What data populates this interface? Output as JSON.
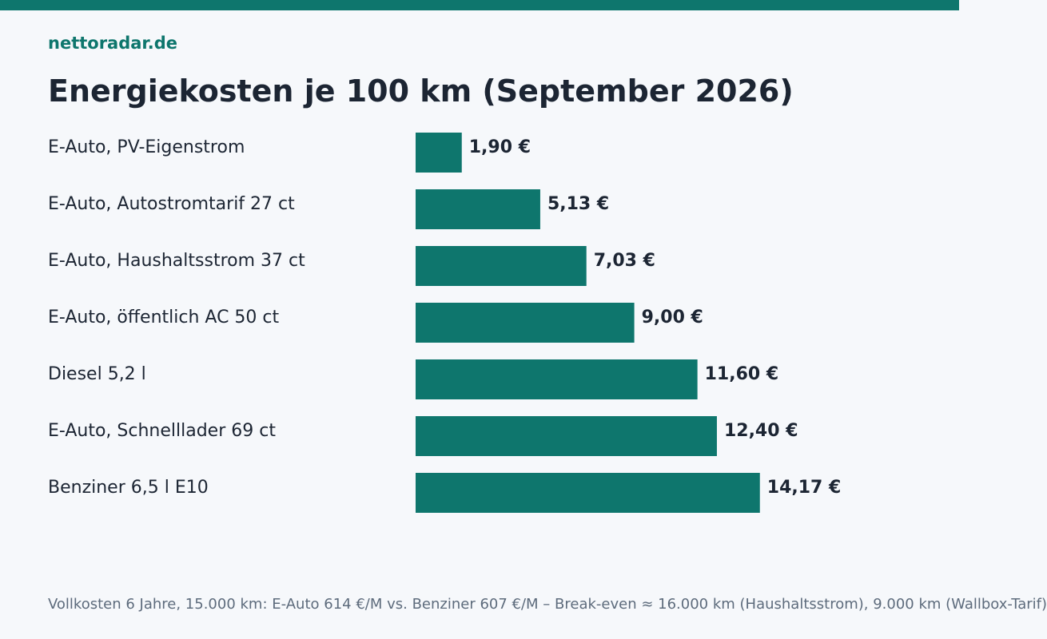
{
  "brand": "nettoradar.de",
  "colors": {
    "accent": "#0e766d",
    "background": "#f6f8fb",
    "text": "#1c2533",
    "muted": "#5d6b7c"
  },
  "chart_data": {
    "type": "bar",
    "orientation": "horizontal",
    "title": "Energiekosten je 100 km (September 2026)",
    "xlabel": "",
    "ylabel": "",
    "grid": false,
    "legend": "none",
    "categories": [
      "E-Auto, PV-Eigenstrom",
      "E-Auto, Autostromtarif 27 ct",
      "E-Auto, Haushaltsstrom 37 ct",
      "E-Auto, öffentlich AC 50 ct",
      "Diesel 5,2 l",
      "E-Auto, Schnelllader 69 ct",
      "Benziner 6,5 l E10"
    ],
    "values": [
      1.9,
      5.13,
      7.03,
      9.0,
      11.6,
      12.4,
      14.17
    ],
    "value_labels": [
      "1,90 €",
      "5,13 €",
      "7,03 €",
      "9,00 €",
      "11,60 €",
      "12,40 €",
      "14,17 €"
    ],
    "bar_color": "#0e766d"
  },
  "footnote": "Vollkosten 6 Jahre, 15.000 km: E-Auto 614 €/M vs. Benziner 607 €/M – Break-even ≈ 16.000 km (Haushaltsstrom), 9.000 km (Wallbox-Tarif)"
}
